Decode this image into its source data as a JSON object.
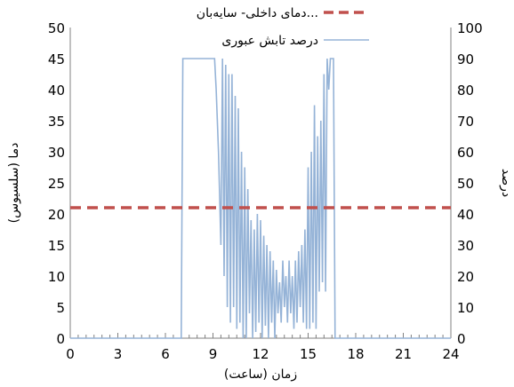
{
  "chart_data": {
    "type": "line",
    "xlabel": "زمان (ساعت)",
    "ylabel_left": "دما (سلسیوس)",
    "ylabel_right": "درصد",
    "xlim": [
      0,
      24
    ],
    "ylim_left": [
      0,
      50
    ],
    "ylim_right": [
      0,
      100
    ],
    "x_ticks": [
      "0",
      "3",
      "6",
      "9",
      "12",
      "15",
      "18",
      "21",
      "24"
    ],
    "y_left_ticks": [
      "0",
      "5",
      "10",
      "15",
      "20",
      "25",
      "30",
      "35",
      "40",
      "45",
      "50"
    ],
    "y_right_ticks": [
      "0",
      "10",
      "20",
      "30",
      "40",
      "50",
      "60",
      "70",
      "80",
      "90",
      "100"
    ],
    "grid": false,
    "legend_position": "top",
    "series": [
      {
        "name": "دمای داخلی- سایه‌بان...",
        "axis": "left",
        "color": "#c0504d",
        "style": "dashed",
        "x": [
          0,
          24
        ],
        "y": [
          21,
          21
        ]
      },
      {
        "name": "درصد تابش عبوری",
        "axis": "right",
        "color": "#95b3d7",
        "style": "solid",
        "x": [
          0,
          7.0,
          7.1,
          9.1,
          9.2,
          9.35,
          9.5,
          9.6,
          9.7,
          9.8,
          9.9,
          10.0,
          10.1,
          10.2,
          10.3,
          10.4,
          10.5,
          10.6,
          10.7,
          10.8,
          10.9,
          11.0,
          11.1,
          11.2,
          11.3,
          11.4,
          11.5,
          11.6,
          11.7,
          11.8,
          11.9,
          12.0,
          12.1,
          12.2,
          12.3,
          12.4,
          12.5,
          12.6,
          12.7,
          12.8,
          12.9,
          13.0,
          13.1,
          13.2,
          13.3,
          13.4,
          13.5,
          13.6,
          13.7,
          13.8,
          13.9,
          14.0,
          14.1,
          14.2,
          14.3,
          14.4,
          14.5,
          14.6,
          14.7,
          14.8,
          14.9,
          15.0,
          15.1,
          15.2,
          15.3,
          15.4,
          15.5,
          15.6,
          15.7,
          15.8,
          15.9,
          16.0,
          16.1,
          16.2,
          16.3,
          16.4,
          16.5,
          16.6,
          16.7,
          16.8,
          24
        ],
        "y": [
          0,
          0,
          90,
          90,
          80,
          60,
          30,
          90,
          20,
          88,
          10,
          85,
          5,
          85,
          10,
          78,
          3,
          74,
          5,
          60,
          0,
          55,
          0,
          48,
          8,
          38,
          0,
          35,
          2,
          40,
          5,
          38,
          0,
          33,
          4,
          30,
          0,
          28,
          5,
          25,
          0,
          22,
          8,
          18,
          5,
          25,
          10,
          20,
          5,
          25,
          8,
          20,
          3,
          25,
          5,
          28,
          10,
          30,
          5,
          35,
          3,
          55,
          3,
          60,
          5,
          75,
          3,
          65,
          15,
          70,
          18,
          85,
          15,
          90,
          80,
          90,
          90,
          90,
          0,
          0,
          0
        ]
      }
    ]
  }
}
